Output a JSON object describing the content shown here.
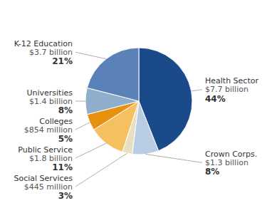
{
  "chart_data": {
    "type": "pie",
    "categories": [
      "Health Sector",
      "Crown Corps.",
      "Social Services",
      "Public Service",
      "Colleges",
      "Universities",
      "K-12 Education"
    ],
    "values": [
      44,
      8,
      3,
      11,
      5,
      8,
      21
    ],
    "value_labels": [
      "44%",
      "8%",
      "3%",
      "11%",
      "5%",
      "8%",
      "21%"
    ],
    "annotations": [
      "$7.7 billion",
      "$1.3 billion",
      "$445 million",
      "$1.8 billion",
      "$854 million",
      "$1.4 billion",
      "$3.7 billion"
    ],
    "colors": [
      "#1b4a8a",
      "#b8cce4",
      "#e8dfc0",
      "#f5c060",
      "#e89010",
      "#8faecb",
      "#5b82b8"
    ],
    "data_labels": true
  }
}
